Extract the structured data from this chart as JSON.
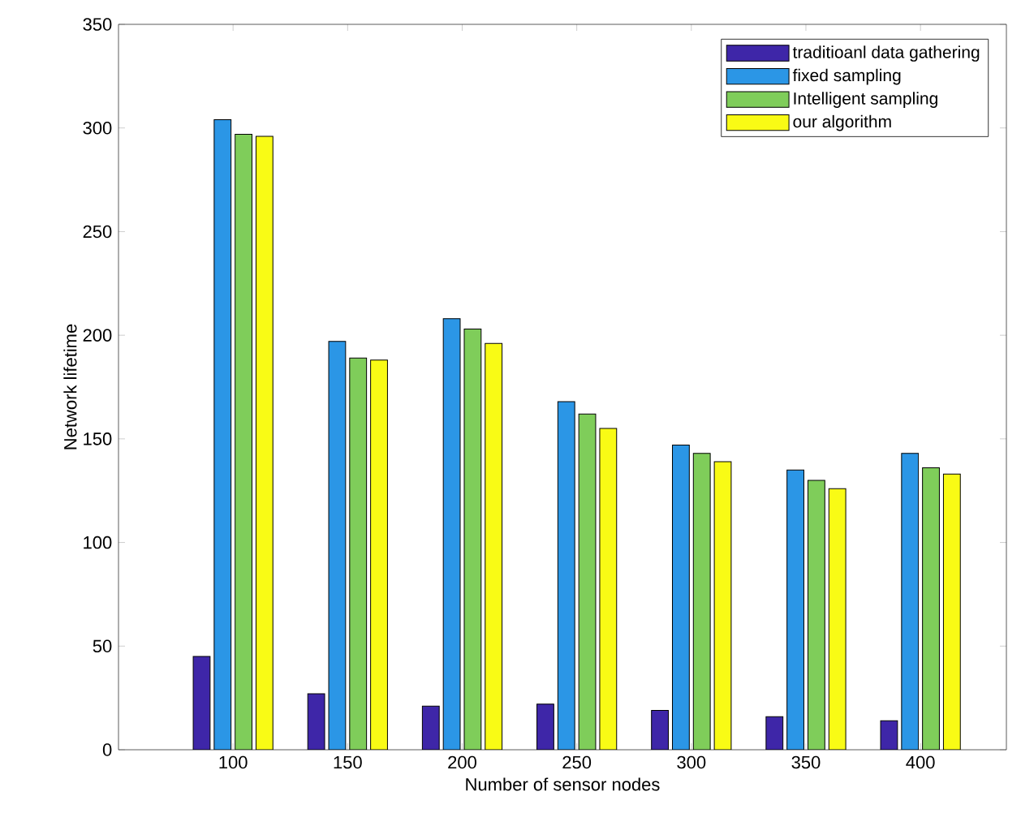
{
  "chart_data": {
    "type": "bar",
    "xlabel": "Number of sensor nodes",
    "ylabel": "Network lifetime",
    "categories": [
      "100",
      "150",
      "200",
      "250",
      "300",
      "350",
      "400"
    ],
    "series": [
      {
        "name": "traditioanl data gathering",
        "color": "#3e26a8",
        "values": [
          45,
          27,
          21,
          22,
          19,
          16,
          14
        ]
      },
      {
        "name": "fixed sampling",
        "color": "#2b96e6",
        "values": [
          304,
          197,
          208,
          168,
          147,
          135,
          143
        ]
      },
      {
        "name": "Intelligent sampling",
        "color": "#7fcd5a",
        "values": [
          297,
          189,
          203,
          162,
          143,
          130,
          136
        ]
      },
      {
        "name": "our algorithm",
        "color": "#f9fb15",
        "values": [
          296,
          188,
          196,
          155,
          139,
          126,
          133
        ]
      }
    ],
    "ylim": [
      0,
      350
    ],
    "yticks": [
      0,
      50,
      100,
      150,
      200,
      250,
      300,
      350
    ],
    "grid": false,
    "legend": "top right"
  }
}
